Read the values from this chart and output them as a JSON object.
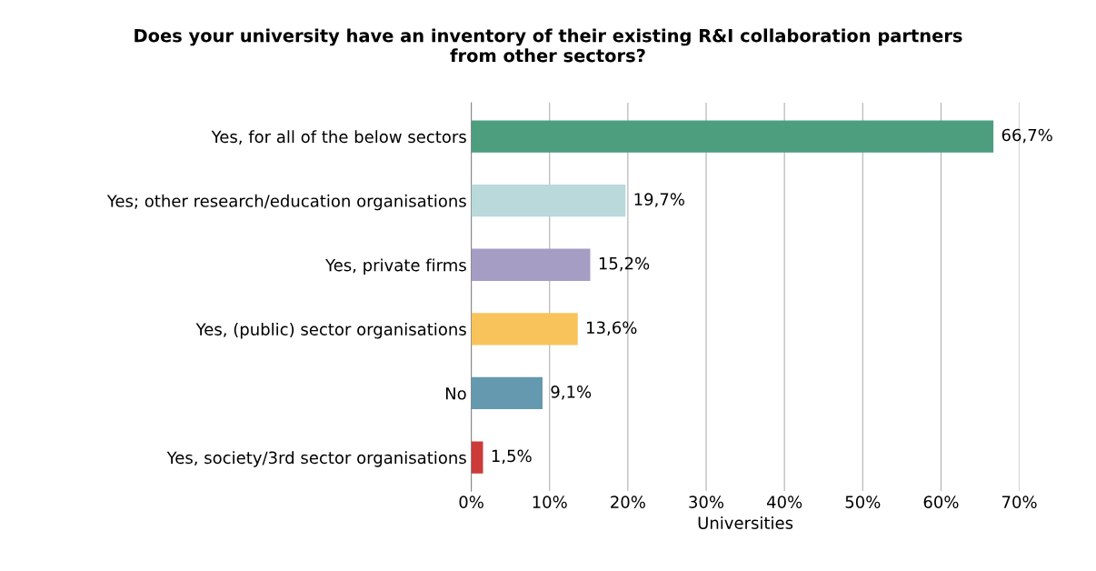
{
  "chart_data": {
    "type": "bar",
    "orientation": "horizontal",
    "title": "Does your university have an inventory of their existing R&I collaboration partners\nfrom other sectors?",
    "categories": [
      "Yes, for all of the below sectors",
      "Yes; other research/education organisations",
      "Yes, private firms",
      "Yes, (public) sector organisations",
      "No",
      "Yes, society/3rd sector organisations"
    ],
    "values": [
      66.7,
      19.7,
      15.2,
      13.6,
      9.1,
      1.5
    ],
    "colors": [
      "#4c9e7e",
      "#b9d9db",
      "#a59dc4",
      "#f7c35a",
      "#6499b0",
      "#cc3a3a"
    ],
    "value_labels": [
      "66,7%",
      "19,7%",
      "15,2%",
      "13,6%",
      "9,1%",
      "1,5%"
    ],
    "xlabel": "Universities",
    "xlim": [
      0,
      70
    ],
    "xticks": [
      {
        "value": 0,
        "label": "0%"
      },
      {
        "value": 10,
        "label": "10%"
      },
      {
        "value": 20,
        "label": "20%"
      },
      {
        "value": 30,
        "label": "30%"
      },
      {
        "value": 40,
        "label": "40%"
      },
      {
        "value": 50,
        "label": "50%"
      },
      {
        "value": 60,
        "label": "60%"
      },
      {
        "value": 70,
        "label": "70%"
      }
    ],
    "grid": "x"
  }
}
